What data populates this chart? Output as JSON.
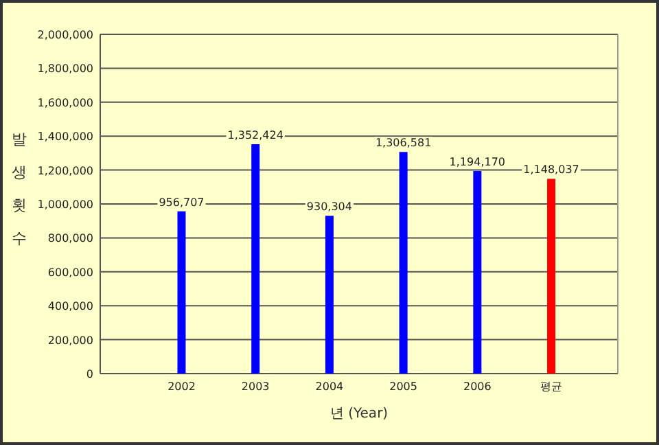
{
  "chart_data": {
    "type": "bar",
    "xlabel": "년 (Year)",
    "ylabel": "발생횟수",
    "categories": [
      "2002",
      "2003",
      "2004",
      "2005",
      "2006",
      "평균"
    ],
    "values": [
      956707,
      1352424,
      930304,
      1306581,
      1194170,
      1148037
    ],
    "colors": [
      "#0000ff",
      "#0000ff",
      "#0000ff",
      "#0000ff",
      "#0000ff",
      "#ff0000"
    ],
    "ylim": [
      0,
      2000000
    ],
    "yticks": [
      {
        "value": 0,
        "label": "0"
      },
      {
        "value": 200000,
        "label": "200,000"
      },
      {
        "value": 400000,
        "label": "400,000"
      },
      {
        "value": 600000,
        "label": "600,000"
      },
      {
        "value": 800000,
        "label": "800,000"
      },
      {
        "value": 1000000,
        "label": "1,000,000"
      },
      {
        "value": 1200000,
        "label": "1,200,000"
      },
      {
        "value": 1400000,
        "label": "1,400,000"
      },
      {
        "value": 1600000,
        "label": "1,600,000"
      },
      {
        "value": 1800000,
        "label": "1,800,000"
      },
      {
        "value": 2000000,
        "label": "2,000,000"
      }
    ],
    "value_labels": [
      "956,707",
      "1,352,424",
      "930,304",
      "1,306,581",
      "1,194,170",
      "1,148,037"
    ],
    "grid": "y"
  }
}
